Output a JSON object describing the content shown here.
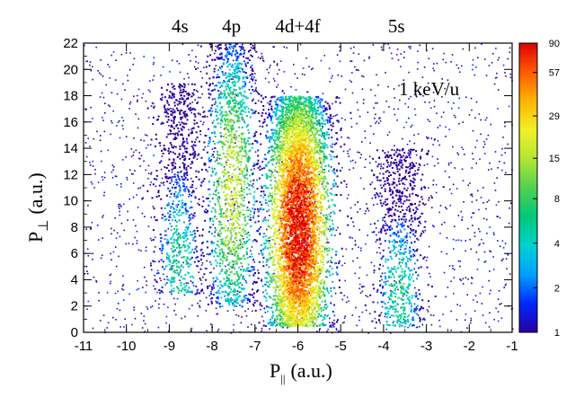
{
  "chart_data": {
    "type": "heatmap",
    "xlabel_main": "P",
    "xlabel_sub": "||",
    "xlabel_unit": "(a.u.)",
    "ylabel_main": "P",
    "ylabel_sub": "⊥",
    "ylabel_unit": "(a.u.)",
    "xlim": [
      -11,
      -1
    ],
    "ylim": [
      0,
      22
    ],
    "x_ticks": [
      -11,
      -10,
      -9,
      -8,
      -7,
      -6,
      -5,
      -4,
      -3,
      -2,
      -1
    ],
    "y_ticks": [
      0,
      2,
      4,
      6,
      8,
      10,
      12,
      14,
      16,
      18,
      20,
      22
    ],
    "annotation": "1 keV/u",
    "peak_labels": [
      {
        "text": "4s",
        "x": -8.75
      },
      {
        "text": "4p",
        "x": -7.55
      },
      {
        "text": "4d+4f",
        "x": -6.0
      },
      {
        "text": "5s",
        "x": -3.7
      }
    ],
    "colorbar": {
      "scale": "log",
      "range": [
        1,
        90
      ],
      "tick_labels": [
        "1",
        "2",
        "4",
        "8",
        "15",
        "29",
        "57",
        "90"
      ],
      "colors": [
        "#2a00a0",
        "#0028ff",
        "#00a0ff",
        "#00d2d2",
        "#00c878",
        "#50d250",
        "#b4e632",
        "#f0f028",
        "#ffb400",
        "#ff5a00",
        "#dc0000"
      ]
    },
    "clusters": [
      {
        "name": "4s",
        "x_center": -8.8,
        "x_sigma": 0.28,
        "y_range": [
          3,
          19
        ],
        "peak_y": 5.2,
        "peak_count": 6
      },
      {
        "name": "4p",
        "x_center": -7.55,
        "x_sigma": 0.3,
        "y_range": [
          2,
          22
        ],
        "peak_y": 11,
        "peak_count": 18
      },
      {
        "name": "4d+4f",
        "x_center": -6.0,
        "x_sigma": 0.35,
        "y_range": [
          0.5,
          18
        ],
        "peak_y": 8,
        "peak_count": 90
      },
      {
        "name": "5s",
        "x_center": -3.65,
        "x_sigma": 0.3,
        "y_range": [
          0.5,
          14
        ],
        "peak_y": 3,
        "peak_count": 6
      }
    ]
  }
}
